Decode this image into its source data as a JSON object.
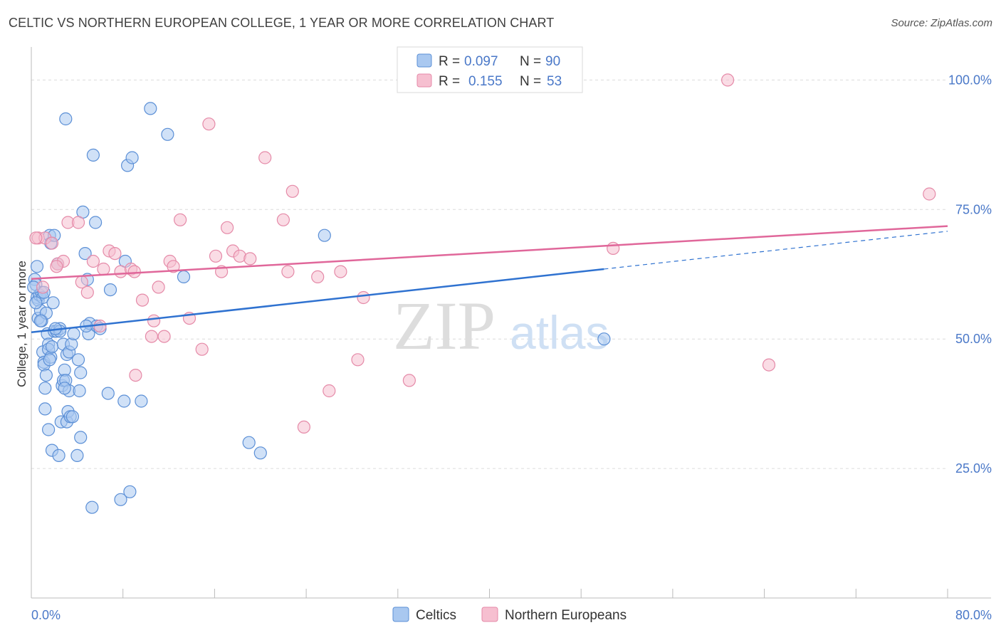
{
  "title": "CELTIC VS NORTHERN EUROPEAN COLLEGE, 1 YEAR OR MORE CORRELATION CHART",
  "source": "Source: ZipAtlas.com",
  "watermark": {
    "zip": "ZIP",
    "atlas": "atlas"
  },
  "colors": {
    "blue_fill": "#a9c8f0",
    "blue_stroke": "#5b8fd6",
    "blue_line": "#2f72d0",
    "pink_fill": "#f6bfd0",
    "pink_stroke": "#e58aa8",
    "pink_line": "#e0679a",
    "axis_text": "#4a78c8",
    "grid": "#dcdcdc"
  },
  "legend": {
    "r_label": "R =",
    "n_label": "N =",
    "rows": [
      {
        "r": "0.097",
        "n": "90"
      },
      {
        "r": "0.155",
        "n": "53"
      }
    ]
  },
  "chart_data": {
    "type": "scatter",
    "xlabel": "",
    "ylabel": "College, 1 year or more",
    "xlim": [
      0,
      80
    ],
    "ylim": [
      0,
      105
    ],
    "x_tick_labels": [
      "0.0%",
      "80.0%"
    ],
    "y_tick_labels": [
      "25.0%",
      "50.0%",
      "75.0%",
      "100.0%"
    ],
    "y_ticks": [
      25,
      50,
      75,
      100
    ],
    "grid": true,
    "legend_position": "top-center",
    "series": [
      {
        "name": "Celtics",
        "color": "blue",
        "trend": {
          "x0": 0,
          "y0": 51.3,
          "x1": 50,
          "y1": 63.5,
          "dash_to": 80,
          "dash_y": 70.8
        },
        "points": [
          [
            0.3,
            61.5
          ],
          [
            0.4,
            60.5
          ],
          [
            0.5,
            64.0
          ],
          [
            0.5,
            58.0
          ],
          [
            0.6,
            57.5
          ],
          [
            0.6,
            54.0
          ],
          [
            0.7,
            58.5
          ],
          [
            0.8,
            55.5
          ],
          [
            0.9,
            59.0
          ],
          [
            0.9,
            53.5
          ],
          [
            1.0,
            47.5
          ],
          [
            1.0,
            58.0
          ],
          [
            1.1,
            45.5
          ],
          [
            1.1,
            45.0
          ],
          [
            1.2,
            40.5
          ],
          [
            1.2,
            36.5
          ],
          [
            1.3,
            43.0
          ],
          [
            1.3,
            55.0
          ],
          [
            1.4,
            51.0
          ],
          [
            1.5,
            49.0
          ],
          [
            1.5,
            32.5
          ],
          [
            1.5,
            48.0
          ],
          [
            1.6,
            70.0
          ],
          [
            1.7,
            68.5
          ],
          [
            1.7,
            46.5
          ],
          [
            1.8,
            28.5
          ],
          [
            1.8,
            48.5
          ],
          [
            1.9,
            57.0
          ],
          [
            2.0,
            51.5
          ],
          [
            2.0,
            70.0
          ],
          [
            2.2,
            51.5
          ],
          [
            2.3,
            64.5
          ],
          [
            2.4,
            27.5
          ],
          [
            2.5,
            52.0
          ],
          [
            2.5,
            51.5
          ],
          [
            2.6,
            34.0
          ],
          [
            2.7,
            41.0
          ],
          [
            2.8,
            42.0
          ],
          [
            2.8,
            49.0
          ],
          [
            2.9,
            44.0
          ],
          [
            3.0,
            92.5
          ],
          [
            3.0,
            42.0
          ],
          [
            3.1,
            47.0
          ],
          [
            3.1,
            34.0
          ],
          [
            3.2,
            36.0
          ],
          [
            3.3,
            40.0
          ],
          [
            3.3,
            47.5
          ],
          [
            3.4,
            35.0
          ],
          [
            3.5,
            49.0
          ],
          [
            3.7,
            51.0
          ],
          [
            4.0,
            27.5
          ],
          [
            4.1,
            46.0
          ],
          [
            4.2,
            40.0
          ],
          [
            4.3,
            31.0
          ],
          [
            4.3,
            43.5
          ],
          [
            4.5,
            74.5
          ],
          [
            4.7,
            66.5
          ],
          [
            4.9,
            61.5
          ],
          [
            5.0,
            51.0
          ],
          [
            5.1,
            53.0
          ],
          [
            5.3,
            17.5
          ],
          [
            5.4,
            85.5
          ],
          [
            5.6,
            72.5
          ],
          [
            5.7,
            52.5
          ],
          [
            6.7,
            39.5
          ],
          [
            6.9,
            59.5
          ],
          [
            7.8,
            19.0
          ],
          [
            8.1,
            38.0
          ],
          [
            8.2,
            65.0
          ],
          [
            8.4,
            83.5
          ],
          [
            8.6,
            20.5
          ],
          [
            8.8,
            85.0
          ],
          [
            9.6,
            38.0
          ],
          [
            10.4,
            94.5
          ],
          [
            11.9,
            89.5
          ],
          [
            13.3,
            62.0
          ],
          [
            19.0,
            30.0
          ],
          [
            20.0,
            28.0
          ],
          [
            25.6,
            70.0
          ],
          [
            50.0,
            50.0
          ],
          [
            0.2,
            60.0
          ],
          [
            0.4,
            57.0
          ],
          [
            1.6,
            46.0
          ],
          [
            2.1,
            52.0
          ],
          [
            3.6,
            35.0
          ],
          [
            6.0,
            52.0
          ],
          [
            4.8,
            52.5
          ],
          [
            2.9,
            40.5
          ],
          [
            1.1,
            59.0
          ],
          [
            0.8,
            53.5
          ]
        ]
      },
      {
        "name": "Northern Europeans",
        "color": "pink",
        "trend": {
          "x0": 0,
          "y0": 61.6,
          "x1": 80,
          "y1": 71.8
        },
        "points": [
          [
            0.6,
            69.5
          ],
          [
            1.0,
            60.0
          ],
          [
            1.2,
            69.5
          ],
          [
            1.8,
            68.5
          ],
          [
            2.3,
            64.5
          ],
          [
            2.8,
            65.0
          ],
          [
            3.2,
            72.5
          ],
          [
            4.1,
            72.5
          ],
          [
            4.4,
            61.0
          ],
          [
            4.9,
            59.0
          ],
          [
            5.4,
            65.0
          ],
          [
            6.0,
            52.5
          ],
          [
            6.3,
            63.5
          ],
          [
            6.8,
            67.0
          ],
          [
            7.3,
            66.5
          ],
          [
            7.8,
            63.0
          ],
          [
            8.7,
            63.5
          ],
          [
            9.0,
            63.0
          ],
          [
            9.1,
            43.0
          ],
          [
            9.7,
            57.5
          ],
          [
            10.5,
            50.5
          ],
          [
            10.7,
            53.5
          ],
          [
            11.1,
            60.0
          ],
          [
            11.6,
            50.5
          ],
          [
            12.1,
            65.0
          ],
          [
            12.4,
            64.0
          ],
          [
            13.0,
            73.0
          ],
          [
            13.8,
            54.0
          ],
          [
            14.9,
            48.0
          ],
          [
            15.5,
            91.5
          ],
          [
            16.1,
            66.0
          ],
          [
            16.6,
            63.0
          ],
          [
            17.1,
            71.5
          ],
          [
            17.6,
            67.0
          ],
          [
            18.2,
            66.0
          ],
          [
            19.1,
            65.5
          ],
          [
            20.4,
            85.0
          ],
          [
            22.0,
            73.0
          ],
          [
            22.4,
            63.0
          ],
          [
            22.8,
            78.5
          ],
          [
            23.8,
            33.0
          ],
          [
            25.0,
            62.0
          ],
          [
            26.0,
            40.0
          ],
          [
            27.0,
            63.0
          ],
          [
            28.5,
            46.0
          ],
          [
            29.0,
            58.0
          ],
          [
            33.0,
            42.0
          ],
          [
            50.8,
            67.5
          ],
          [
            60.8,
            100.0
          ],
          [
            64.4,
            45.0
          ],
          [
            78.4,
            78.0
          ],
          [
            0.4,
            69.5
          ],
          [
            2.2,
            64.0
          ]
        ]
      }
    ]
  }
}
